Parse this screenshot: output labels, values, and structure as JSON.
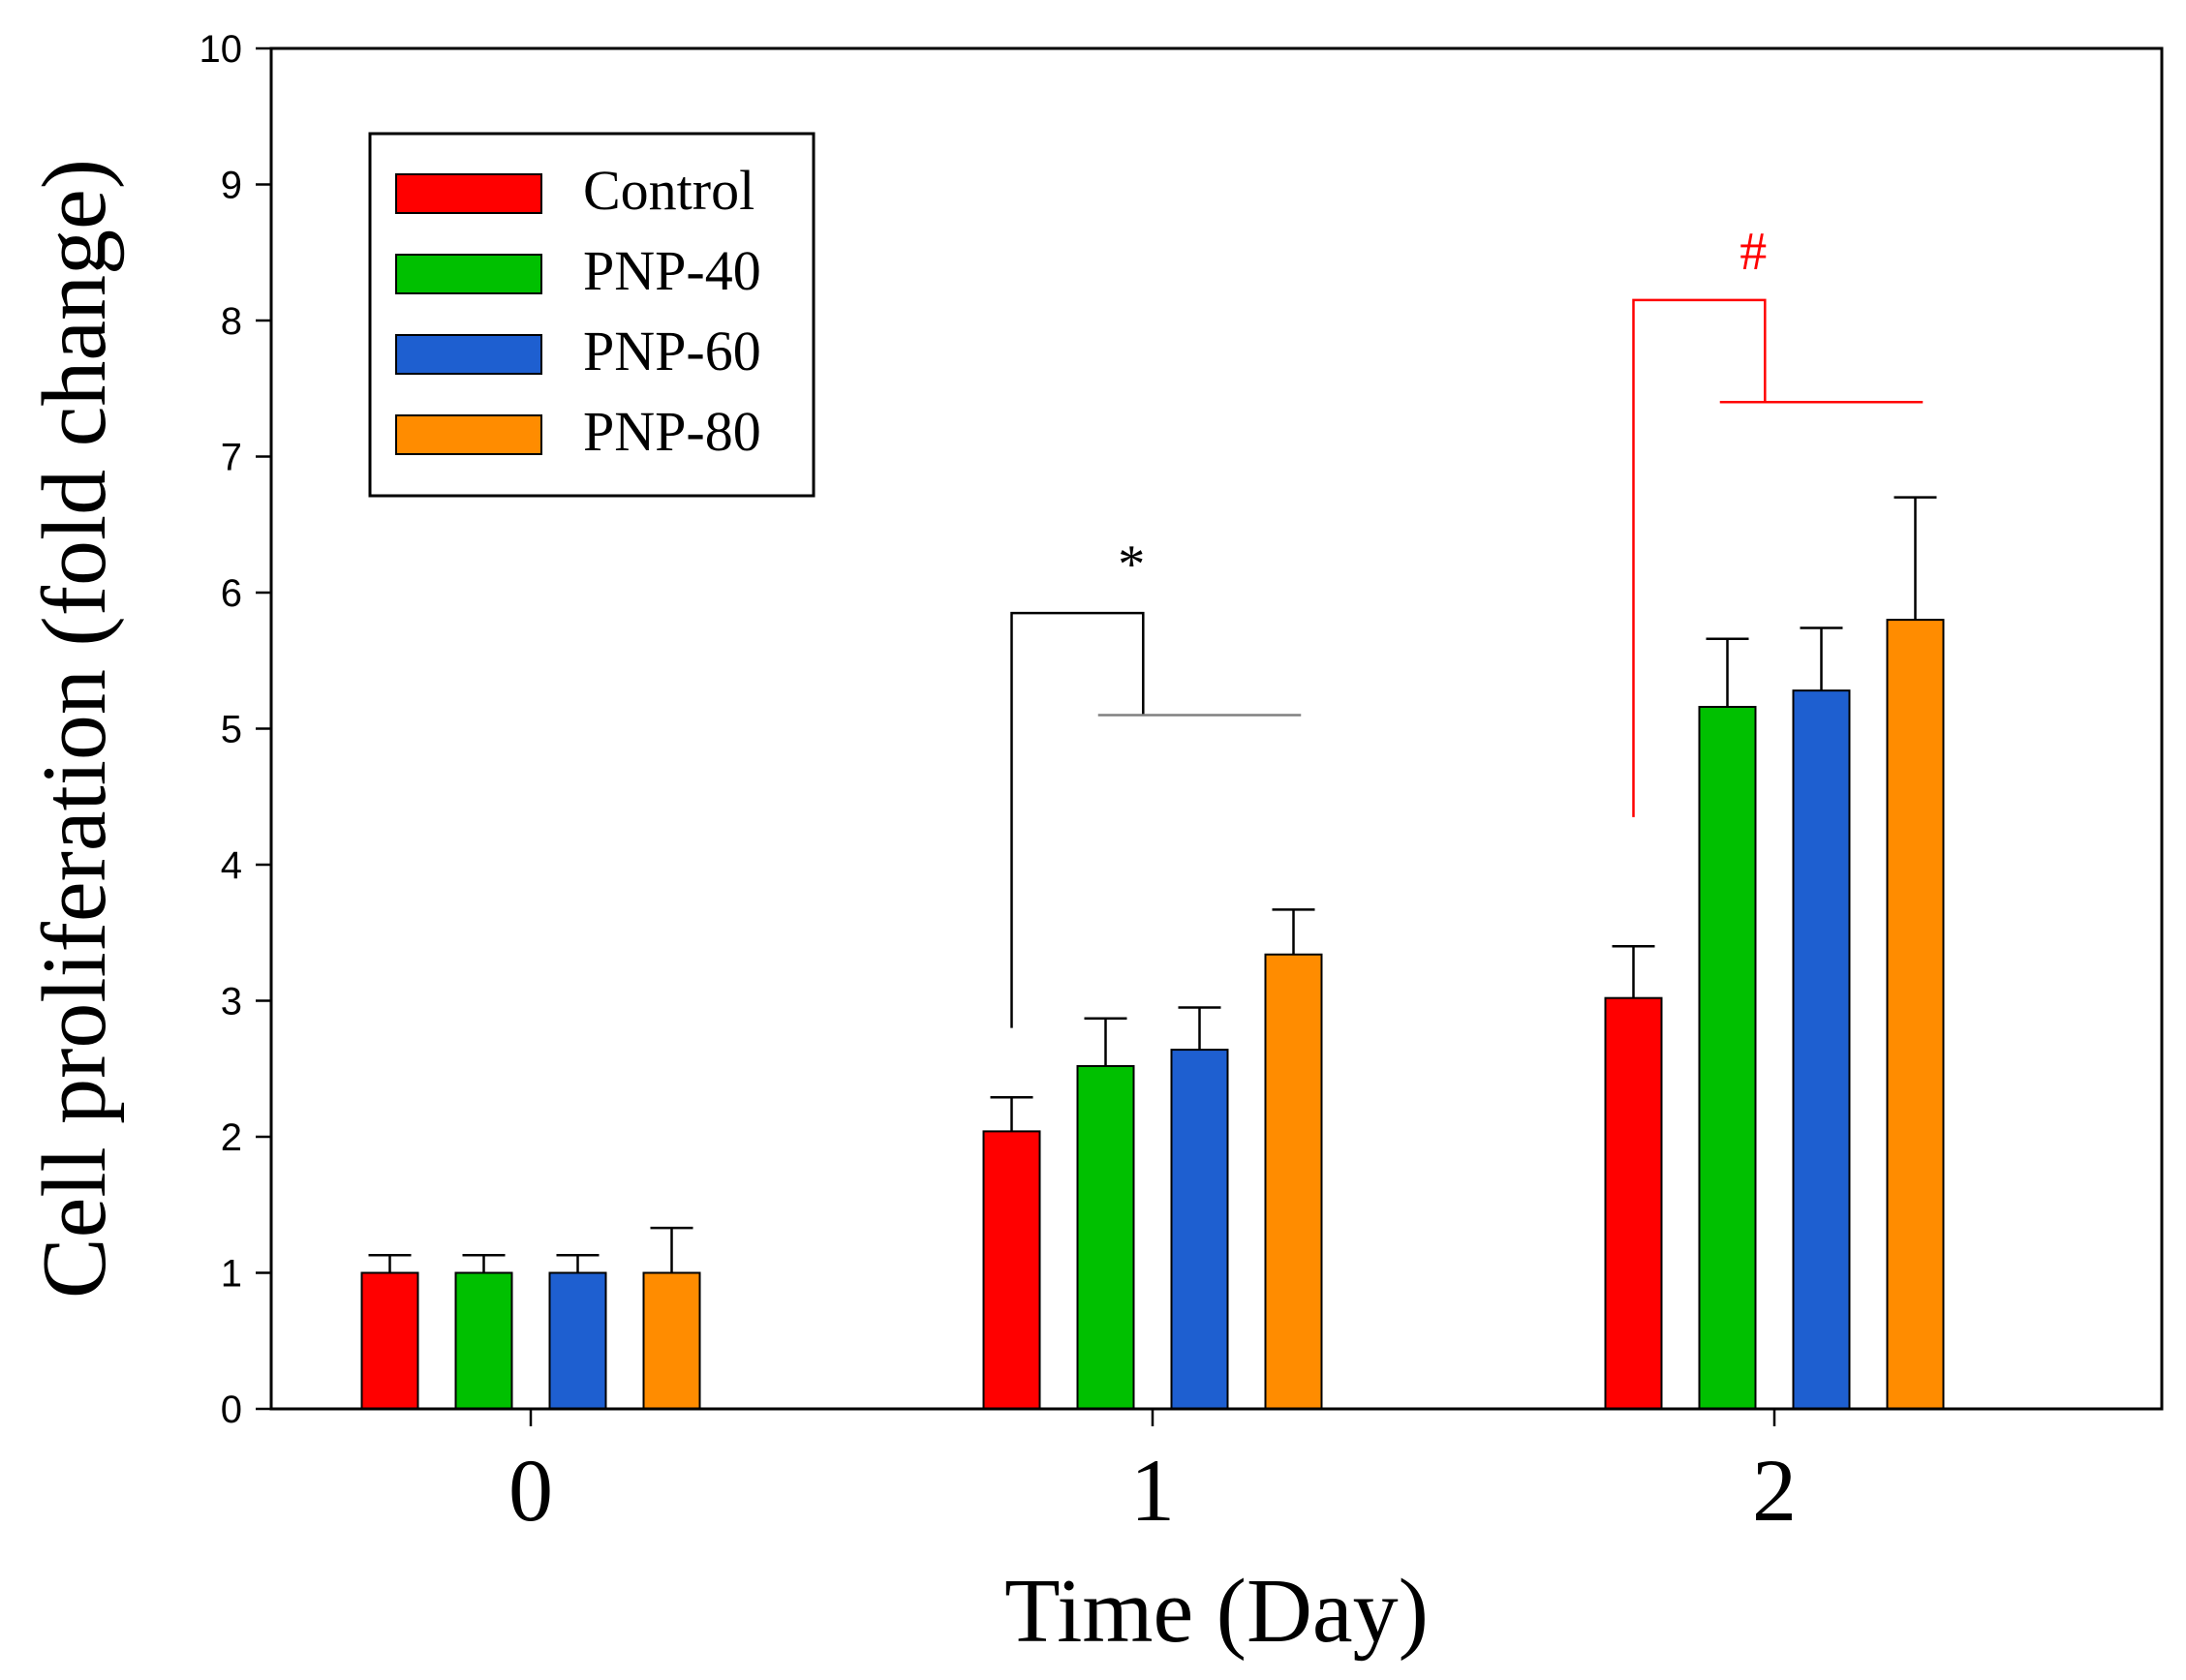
{
  "chart_data": {
    "type": "bar",
    "title": "",
    "xlabel": "Time (Day)",
    "ylabel": "Cell proliferation (fold change)",
    "categories": [
      "0",
      "1",
      "2"
    ],
    "ylim": [
      0,
      10
    ],
    "yticks": [
      0,
      1,
      2,
      3,
      4,
      5,
      6,
      7,
      8,
      9,
      10
    ],
    "grid": false,
    "legend_position": "top-left",
    "series": [
      {
        "name": "Control",
        "color": "#ff0000",
        "values": [
          1.0,
          2.04,
          3.02
        ],
        "errors": [
          0.13,
          0.25,
          0.38
        ]
      },
      {
        "name": "PNP-40",
        "color": "#00c000",
        "values": [
          1.0,
          2.52,
          5.16
        ],
        "errors": [
          0.13,
          0.35,
          0.5
        ]
      },
      {
        "name": "PNP-60",
        "color": "#1e5fd0",
        "values": [
          1.0,
          2.64,
          5.28
        ],
        "errors": [
          0.13,
          0.31,
          0.46
        ]
      },
      {
        "name": "PNP-80",
        "color": "#ff8c00",
        "values": [
          1.0,
          3.34,
          5.8
        ],
        "errors": [
          0.33,
          0.33,
          0.9
        ]
      }
    ],
    "annotations": [
      {
        "label": "*",
        "category_index": 1,
        "color": "#000000",
        "branch_color": "#808080",
        "left_y": 2.8,
        "top_y": 5.85,
        "branch_y": 5.1
      },
      {
        "label": "#",
        "category_index": 2,
        "color": "#ff0000",
        "branch_color": "#ff0000",
        "left_y": 4.35,
        "top_y": 8.15,
        "branch_y": 7.4
      }
    ]
  }
}
